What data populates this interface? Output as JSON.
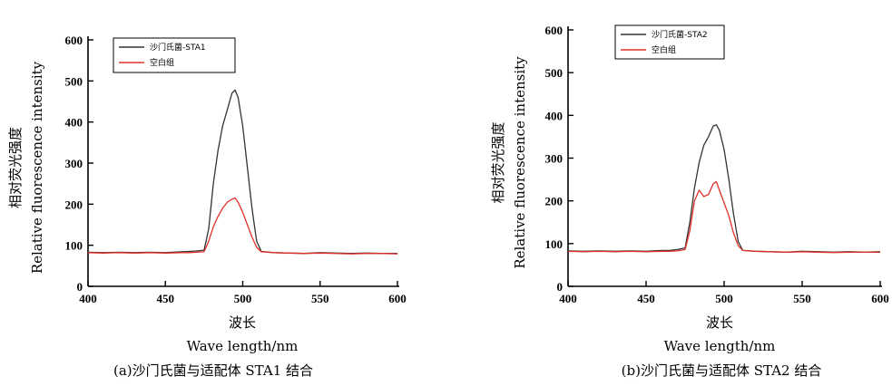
{
  "chart_data": [
    {
      "type": "line",
      "xlabel_cn": "波长",
      "xlabel_en": "Wave length/nm",
      "ylabel_cn": "相对荧光强度",
      "ylabel_en": "Relative fluorescence intensity",
      "caption": "(a)沙门氏菌与适配体 STA1 结合",
      "xlim": [
        400,
        600
      ],
      "ylim": [
        0,
        600
      ],
      "xticks": [
        400,
        450,
        500,
        550,
        600
      ],
      "yticks": [
        0,
        100,
        200,
        300,
        400,
        500,
        600
      ],
      "legend_position": "top-left",
      "series": [
        {
          "name": "沙门氏菌-STA1",
          "color": "#333333",
          "x": [
            400,
            410,
            420,
            430,
            440,
            450,
            460,
            465,
            470,
            475,
            478,
            481,
            484,
            487,
            490,
            493,
            495,
            497,
            500,
            503,
            506,
            509,
            512,
            520,
            530,
            540,
            550,
            560,
            570,
            580,
            590,
            600
          ],
          "y": [
            83,
            82,
            83,
            82,
            83,
            82,
            84,
            85,
            86,
            88,
            140,
            250,
            330,
            390,
            430,
            470,
            478,
            460,
            390,
            290,
            190,
            110,
            85,
            82,
            81,
            80,
            82,
            81,
            80,
            81,
            80,
            80
          ]
        },
        {
          "name": "空白组",
          "color": "#e0302a",
          "x": [
            400,
            410,
            420,
            430,
            440,
            450,
            460,
            465,
            470,
            475,
            478,
            481,
            484,
            487,
            490,
            493,
            495,
            497,
            500,
            503,
            506,
            509,
            512,
            520,
            530,
            540,
            550,
            560,
            570,
            580,
            590,
            600
          ],
          "y": [
            82,
            81,
            82,
            81,
            82,
            81,
            82,
            82,
            83,
            84,
            110,
            145,
            170,
            190,
            205,
            212,
            215,
            205,
            180,
            150,
            120,
            95,
            84,
            82,
            81,
            80,
            81,
            80,
            79,
            80,
            80,
            79
          ]
        }
      ]
    },
    {
      "type": "line",
      "xlabel_cn": "波长",
      "xlabel_en": "Wave length/nm",
      "ylabel_cn": "相对荧光强度",
      "ylabel_en": "Relative fluorescence intensity",
      "caption": "(b)沙门氏菌与适配体 STA2 结合",
      "xlim": [
        400,
        600
      ],
      "ylim": [
        0,
        600
      ],
      "xticks": [
        400,
        450,
        500,
        550,
        600
      ],
      "yticks": [
        0,
        100,
        200,
        300,
        400,
        500,
        600
      ],
      "legend_position": "top-left",
      "series": [
        {
          "name": "沙门氏菌-STA2",
          "color": "#333333",
          "x": [
            400,
            410,
            420,
            430,
            440,
            450,
            460,
            465,
            470,
            475,
            478,
            481,
            484,
            487,
            490,
            493,
            495,
            497,
            500,
            503,
            506,
            509,
            512,
            520,
            530,
            540,
            550,
            560,
            570,
            580,
            590,
            600
          ],
          "y": [
            83,
            82,
            83,
            82,
            83,
            82,
            84,
            84,
            86,
            90,
            150,
            230,
            290,
            330,
            350,
            375,
            378,
            365,
            320,
            250,
            170,
            105,
            84,
            82,
            81,
            80,
            82,
            81,
            80,
            81,
            80,
            81
          ]
        },
        {
          "name": "空白组",
          "color": "#e0302a",
          "x": [
            400,
            410,
            420,
            430,
            440,
            450,
            460,
            465,
            470,
            475,
            478,
            481,
            484,
            487,
            490,
            493,
            495,
            497,
            500,
            503,
            506,
            509,
            512,
            520,
            530,
            540,
            550,
            560,
            570,
            580,
            590,
            600
          ],
          "y": [
            82,
            81,
            82,
            81,
            82,
            81,
            82,
            82,
            83,
            86,
            130,
            200,
            225,
            210,
            215,
            240,
            245,
            225,
            195,
            165,
            125,
            95,
            84,
            82,
            81,
            80,
            81,
            80,
            79,
            80,
            80,
            80
          ]
        }
      ]
    }
  ]
}
